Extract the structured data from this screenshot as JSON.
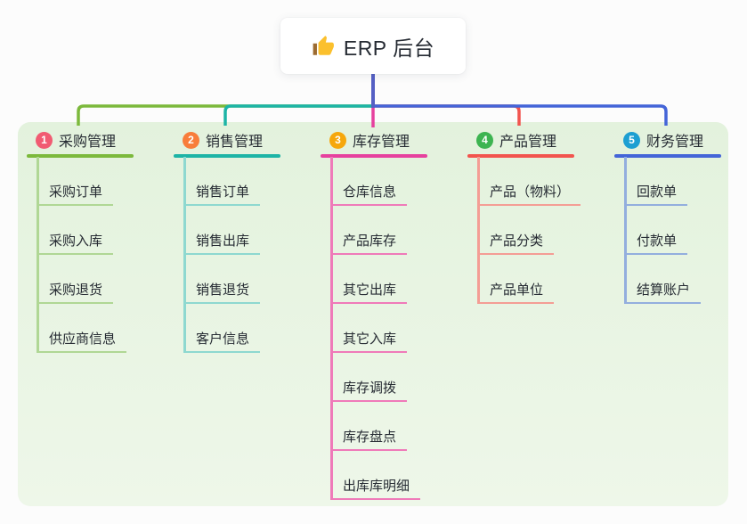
{
  "root": {
    "title": "ERP 后台",
    "icon": "thumbs-up-icon"
  },
  "theme": {
    "page_bg": "#fcfcfc",
    "panel_bg_top": "#e3f2dd",
    "panel_bg_bottom": "#eef7e9",
    "root_line_color": "#5560c4",
    "text_color": "#262b33"
  },
  "branches": [
    {
      "num": "1",
      "title": "采购管理",
      "badge_color": "#f15b72",
      "line_color": "#7cb93c",
      "sub_line_color": "#b0d795",
      "items": [
        "采购订单",
        "采购入库",
        "采购退货",
        "供应商信息"
      ]
    },
    {
      "num": "2",
      "title": "销售管理",
      "badge_color": "#f87d3b",
      "line_color": "#1db4a6",
      "sub_line_color": "#8ed8d0",
      "items": [
        "销售订单",
        "销售出库",
        "销售退货",
        "客户信息"
      ]
    },
    {
      "num": "3",
      "title": "库存管理",
      "badge_color": "#f6a70c",
      "line_color": "#e6419e",
      "sub_line_color": "#ef7ab9",
      "items": [
        "仓库信息",
        "产品库存",
        "其它出库",
        "其它入库",
        "库存调拨",
        "库存盘点",
        "出库库明细"
      ]
    },
    {
      "num": "4",
      "title": "产品管理",
      "badge_color": "#3db451",
      "line_color": "#f2544e",
      "sub_line_color": "#f49d95",
      "items": [
        "产品（物料）",
        "产品分类",
        "产品单位"
      ]
    },
    {
      "num": "5",
      "title": "财务管理",
      "badge_color": "#1d9fd2",
      "line_color": "#4465d8",
      "sub_line_color": "#93aede",
      "items": [
        "回款单",
        "付款单",
        "结算账户"
      ]
    }
  ]
}
